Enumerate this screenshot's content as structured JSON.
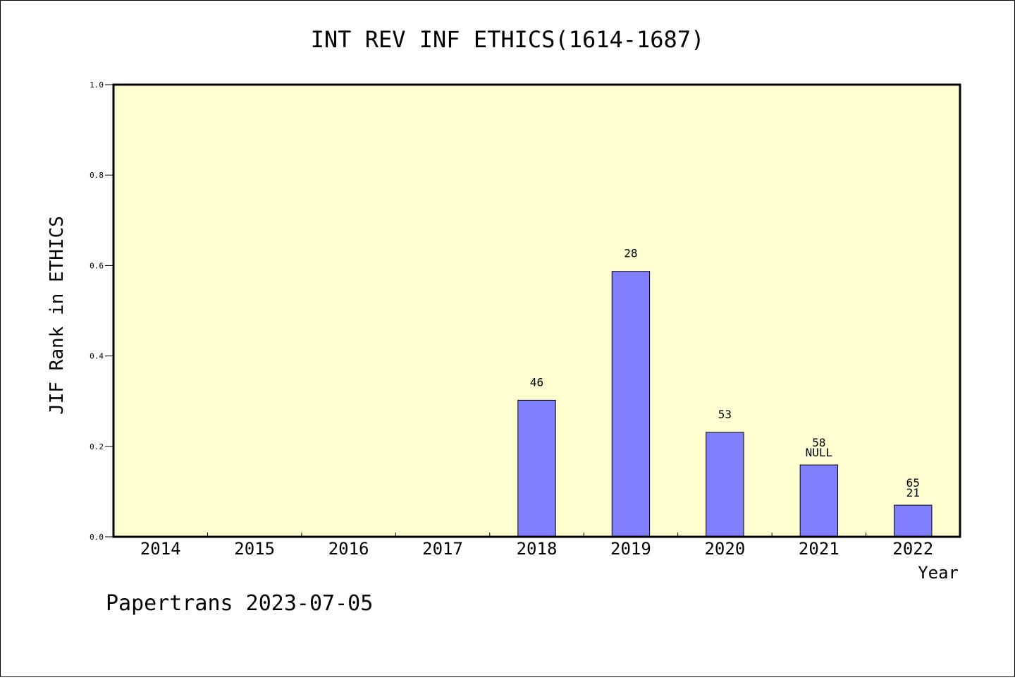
{
  "chart_data": {
    "type": "bar",
    "title": "INT REV INF ETHICS(1614-1687)",
    "xlabel": "Year",
    "ylabel": "JIF Rank in ETHICS",
    "categories": [
      "2014",
      "2015",
      "2016",
      "2017",
      "2018",
      "2019",
      "2020",
      "2021",
      "2022"
    ],
    "values": [
      0,
      0,
      0,
      0,
      0.302,
      0.587,
      0.231,
      0.159,
      0.07
    ],
    "ylim": [
      0,
      1.0
    ],
    "yticks": [
      "0.0",
      "0.2",
      "0.4",
      "0.6",
      "0.8",
      "1.0"
    ],
    "bar_labels": [
      {
        "category": "2018",
        "lines": [
          "46"
        ]
      },
      {
        "category": "2019",
        "lines": [
          "28"
        ]
      },
      {
        "category": "2020",
        "lines": [
          "53"
        ]
      },
      {
        "category": "2021",
        "lines": [
          "58",
          "NULL"
        ]
      },
      {
        "category": "2022",
        "lines": [
          "65",
          "21"
        ]
      }
    ],
    "grid": false,
    "legend": "none",
    "colors": {
      "plot_background": "#ffffd2",
      "bar_fill": "#8080ff",
      "bar_stroke": "#000000"
    }
  },
  "footer": "Papertrans 2023-07-05"
}
